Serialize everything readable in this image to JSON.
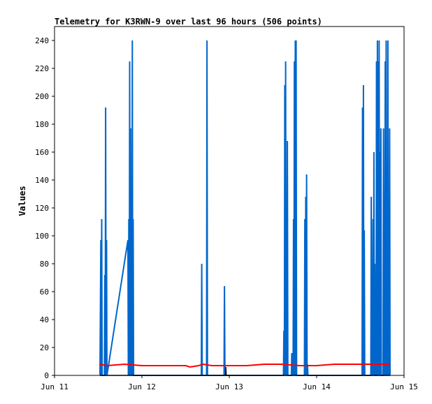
{
  "chart_data": {
    "type": "line",
    "title": "Telemetry for K3RWN-9 over last 96 hours (506 points)",
    "xlabel": "",
    "ylabel": "Values",
    "ylim": [
      0,
      250
    ],
    "xlim": [
      0,
      4
    ],
    "x_ticks": [
      {
        "x": 0,
        "label": "Jun 11"
      },
      {
        "x": 1,
        "label": "Jun 12"
      },
      {
        "x": 2,
        "label": "Jun 13"
      },
      {
        "x": 3,
        "label": "Jun 14"
      },
      {
        "x": 4,
        "label": "Jun 15"
      }
    ],
    "y_ticks": [
      0,
      20,
      40,
      60,
      80,
      100,
      120,
      140,
      160,
      180,
      200,
      220,
      240
    ],
    "grid": false,
    "legend": "none",
    "series": [
      {
        "color": "#0066cc",
        "points": [
          [
            0.52,
            0
          ],
          [
            0.53,
            97
          ],
          [
            0.535,
            0
          ],
          [
            0.54,
            112
          ],
          [
            0.545,
            0
          ],
          [
            0.57,
            0
          ],
          [
            0.575,
            72
          ],
          [
            0.58,
            0
          ],
          [
            0.585,
            192
          ],
          [
            0.59,
            0
          ],
          [
            0.595,
            97
          ],
          [
            0.6,
            0
          ],
          [
            0.84,
            97
          ],
          [
            0.845,
            0
          ],
          [
            0.85,
            112
          ],
          [
            0.855,
            0
          ],
          [
            0.86,
            225
          ],
          [
            0.865,
            0
          ],
          [
            0.87,
            177
          ],
          [
            0.875,
            0
          ],
          [
            0.88,
            40
          ],
          [
            0.885,
            0
          ],
          [
            0.89,
            240
          ],
          [
            0.895,
            0
          ],
          [
            0.9,
            112
          ],
          [
            0.905,
            0
          ],
          [
            1.68,
            0
          ],
          [
            1.685,
            80
          ],
          [
            1.69,
            0
          ],
          [
            1.74,
            0
          ],
          [
            1.745,
            240
          ],
          [
            1.75,
            0
          ],
          [
            1.94,
            0
          ],
          [
            1.945,
            64
          ],
          [
            1.95,
            0
          ],
          [
            2.62,
            0
          ],
          [
            2.625,
            32
          ],
          [
            2.63,
            0
          ],
          [
            2.635,
            208
          ],
          [
            2.64,
            0
          ],
          [
            2.645,
            225
          ],
          [
            2.65,
            0
          ],
          [
            2.655,
            56
          ],
          [
            2.66,
            0
          ],
          [
            2.665,
            168
          ],
          [
            2.67,
            0
          ],
          [
            2.71,
            0
          ],
          [
            2.715,
            16
          ],
          [
            2.72,
            0
          ],
          [
            2.725,
            8
          ],
          [
            2.73,
            0
          ],
          [
            2.735,
            112
          ],
          [
            2.74,
            0
          ],
          [
            2.745,
            225
          ],
          [
            2.75,
            0
          ],
          [
            2.755,
            240
          ],
          [
            2.76,
            0
          ],
          [
            2.765,
            240
          ],
          [
            2.77,
            0
          ],
          [
            2.86,
            0
          ],
          [
            2.865,
            112
          ],
          [
            2.87,
            0
          ],
          [
            2.875,
            128
          ],
          [
            2.88,
            0
          ],
          [
            2.885,
            144
          ],
          [
            2.89,
            0
          ],
          [
            2.895,
            8
          ],
          [
            2.9,
            0
          ],
          [
            3.52,
            0
          ],
          [
            3.525,
            192
          ],
          [
            3.53,
            0
          ],
          [
            3.535,
            208
          ],
          [
            3.54,
            0
          ],
          [
            3.545,
            104
          ],
          [
            3.55,
            0
          ],
          [
            3.62,
            0
          ],
          [
            3.625,
            128
          ],
          [
            3.63,
            0
          ],
          [
            3.635,
            40
          ],
          [
            3.64,
            0
          ],
          [
            3.645,
            112
          ],
          [
            3.65,
            0
          ],
          [
            3.655,
            160
          ],
          [
            3.66,
            0
          ],
          [
            3.665,
            80
          ],
          [
            3.67,
            0
          ],
          [
            3.68,
            0
          ],
          [
            3.685,
            225
          ],
          [
            3.69,
            0
          ],
          [
            3.695,
            240
          ],
          [
            3.7,
            0
          ],
          [
            3.705,
            225
          ],
          [
            3.71,
            0
          ],
          [
            3.715,
            240
          ],
          [
            3.72,
            0
          ],
          [
            3.725,
            160
          ],
          [
            3.73,
            0
          ],
          [
            3.735,
            177
          ],
          [
            3.74,
            0
          ],
          [
            3.76,
            0
          ],
          [
            3.765,
            177
          ],
          [
            3.77,
            0
          ],
          [
            3.775,
            88
          ],
          [
            3.78,
            0
          ],
          [
            3.785,
            225
          ],
          [
            3.79,
            0
          ],
          [
            3.795,
            240
          ],
          [
            3.8,
            0
          ],
          [
            3.805,
            120
          ],
          [
            3.81,
            0
          ],
          [
            3.815,
            240
          ],
          [
            3.82,
            0
          ],
          [
            3.825,
            97
          ],
          [
            3.83,
            0
          ],
          [
            3.835,
            177
          ],
          [
            3.84,
            0
          ]
        ]
      },
      {
        "color": "#ff0000",
        "points": [
          [
            0.52,
            8
          ],
          [
            0.6,
            7
          ],
          [
            0.8,
            8
          ],
          [
            1.0,
            7
          ],
          [
            1.2,
            7
          ],
          [
            1.4,
            7
          ],
          [
            1.5,
            7
          ],
          [
            1.55,
            6
          ],
          [
            1.65,
            7
          ],
          [
            1.7,
            8
          ],
          [
            1.8,
            7
          ],
          [
            1.95,
            7
          ],
          [
            2.0,
            7
          ],
          [
            2.2,
            7
          ],
          [
            2.4,
            8
          ],
          [
            2.6,
            8
          ],
          [
            2.8,
            7
          ],
          [
            3.0,
            7
          ],
          [
            3.2,
            8
          ],
          [
            3.4,
            8
          ],
          [
            3.6,
            8
          ],
          [
            3.8,
            8
          ],
          [
            3.84,
            8
          ]
        ]
      },
      {
        "color": "#000000",
        "points": [
          [
            0.52,
            0
          ],
          [
            1.96,
            0
          ],
          [
            1.96,
            6
          ],
          [
            1.965,
            0
          ],
          [
            3.84,
            0
          ]
        ]
      }
    ]
  }
}
